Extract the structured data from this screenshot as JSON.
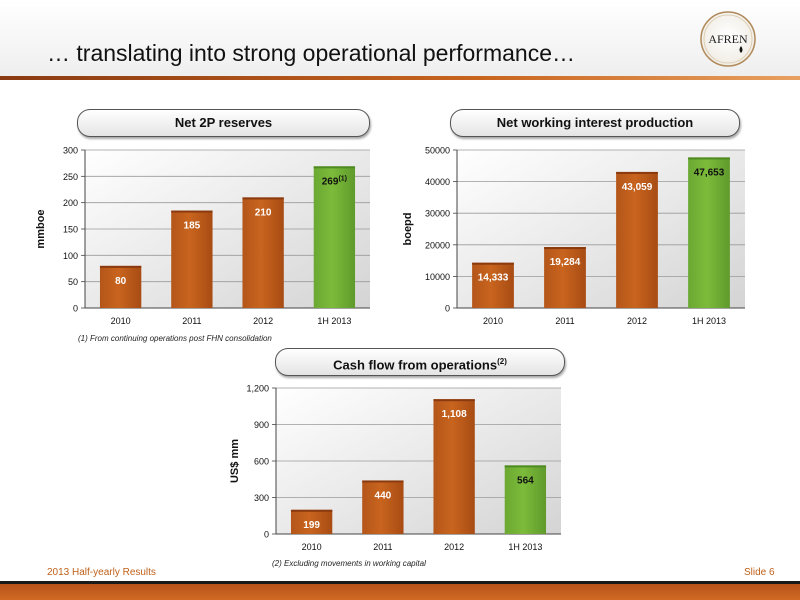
{
  "header": {
    "title": "… translating into strong operational performance…",
    "logo_text": "AFREN"
  },
  "colors": {
    "orange_bar": "#c8641e",
    "green_bar": "#7cbb3a",
    "accent": "#c0601a"
  },
  "pills": {
    "reserves": "Net 2P reserves",
    "production": "Net working interest production",
    "cashflow": "Cash flow from operations",
    "cashflow_sup": "(2)"
  },
  "footnotes": {
    "reserves": "(1) From continuing operations post FHN consolidation",
    "cashflow": "(2) Excluding movements in working capital"
  },
  "footer": {
    "left": "2013 Half-yearly Results",
    "right": "Slide 6"
  },
  "chart_data": [
    {
      "type": "bar",
      "title": "Net 2P reserves",
      "categories": [
        "2010",
        "2011",
        "2012",
        "1H 2013"
      ],
      "values": [
        80,
        185,
        210,
        269
      ],
      "value_labels": [
        "80",
        "185",
        "210",
        "269"
      ],
      "label_superscripts": [
        "",
        "",
        "",
        "(1)"
      ],
      "bar_colors": [
        "orange",
        "orange",
        "orange",
        "green"
      ],
      "ylabel": "mmboe",
      "ylim": [
        0,
        300
      ],
      "yticks": [
        0,
        50,
        100,
        150,
        200,
        250,
        300
      ],
      "ytick_labels": [
        "0",
        "50",
        "100",
        "150",
        "200",
        "250",
        "300"
      ],
      "grid": true
    },
    {
      "type": "bar",
      "title": "Net working interest production",
      "categories": [
        "2010",
        "2011",
        "2012",
        "1H 2013"
      ],
      "values": [
        14333,
        19284,
        43059,
        47653
      ],
      "value_labels": [
        "14,333",
        "19,284",
        "43,059",
        "47,653"
      ],
      "bar_colors": [
        "orange",
        "orange",
        "orange",
        "green"
      ],
      "ylabel": "boepd",
      "ylim": [
        0,
        50000
      ],
      "yticks": [
        0,
        10000,
        20000,
        30000,
        40000,
        50000
      ],
      "ytick_labels": [
        "0",
        "10000",
        "20000",
        "30000",
        "40000",
        "50000"
      ],
      "grid": true
    },
    {
      "type": "bar",
      "title": "Cash flow from operations",
      "categories": [
        "2010",
        "2011",
        "2012",
        "1H 2013"
      ],
      "values": [
        199,
        440,
        1108,
        564
      ],
      "value_labels": [
        "199",
        "440",
        "1,108",
        "564"
      ],
      "bar_colors": [
        "orange",
        "orange",
        "orange",
        "green"
      ],
      "ylabel": "US$ mm",
      "ylim": [
        0,
        1200
      ],
      "yticks": [
        0,
        300,
        600,
        900,
        1200
      ],
      "ytick_labels": [
        "0",
        "300",
        "600",
        "900",
        "1,200"
      ],
      "grid": true
    }
  ]
}
